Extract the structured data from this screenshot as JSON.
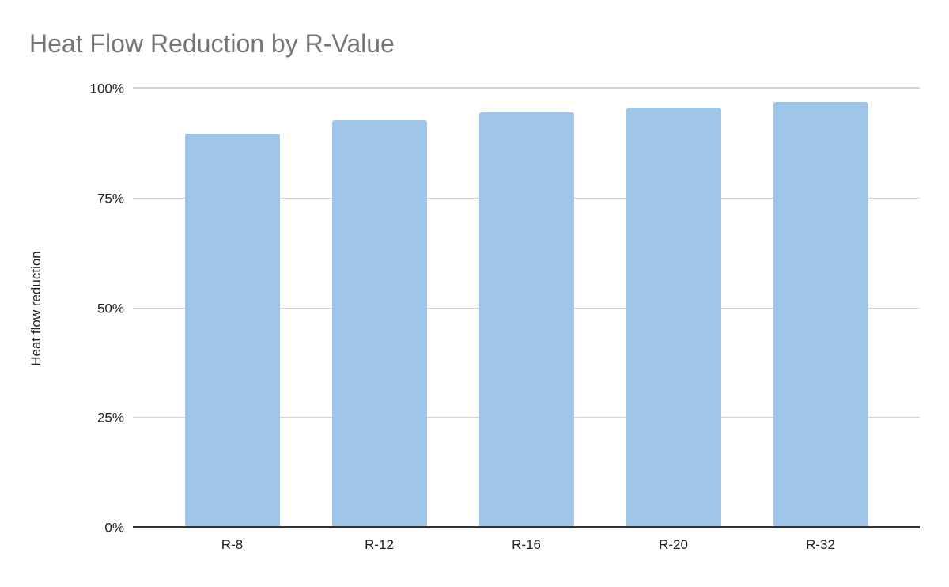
{
  "page": {
    "background": "#ffffff"
  },
  "chart_data": {
    "type": "bar",
    "title": "Heat Flow Reduction by R-Value",
    "categories": [
      "R-8",
      "R-12",
      "R-16",
      "R-20",
      "R-32"
    ],
    "values": [
      89.7,
      92.8,
      94.6,
      95.7,
      96.9
    ],
    "value_unit": "%",
    "xlabel": "",
    "ylabel": "Heat flow reduction",
    "ylim": [
      0,
      100
    ],
    "yticks": [
      {
        "value": 0,
        "label": "0%"
      },
      {
        "value": 25,
        "label": "25%"
      },
      {
        "value": 50,
        "label": "50%"
      },
      {
        "value": 75,
        "label": "75%"
      },
      {
        "value": 100,
        "label": "100%"
      }
    ],
    "grid": true,
    "legend_position": "none",
    "colors": {
      "bar": "#9fc5e8",
      "title_text": "#757575",
      "axis_text": "#212121",
      "gridline": "#d2d2d2",
      "axis_line": "#333333"
    }
  }
}
